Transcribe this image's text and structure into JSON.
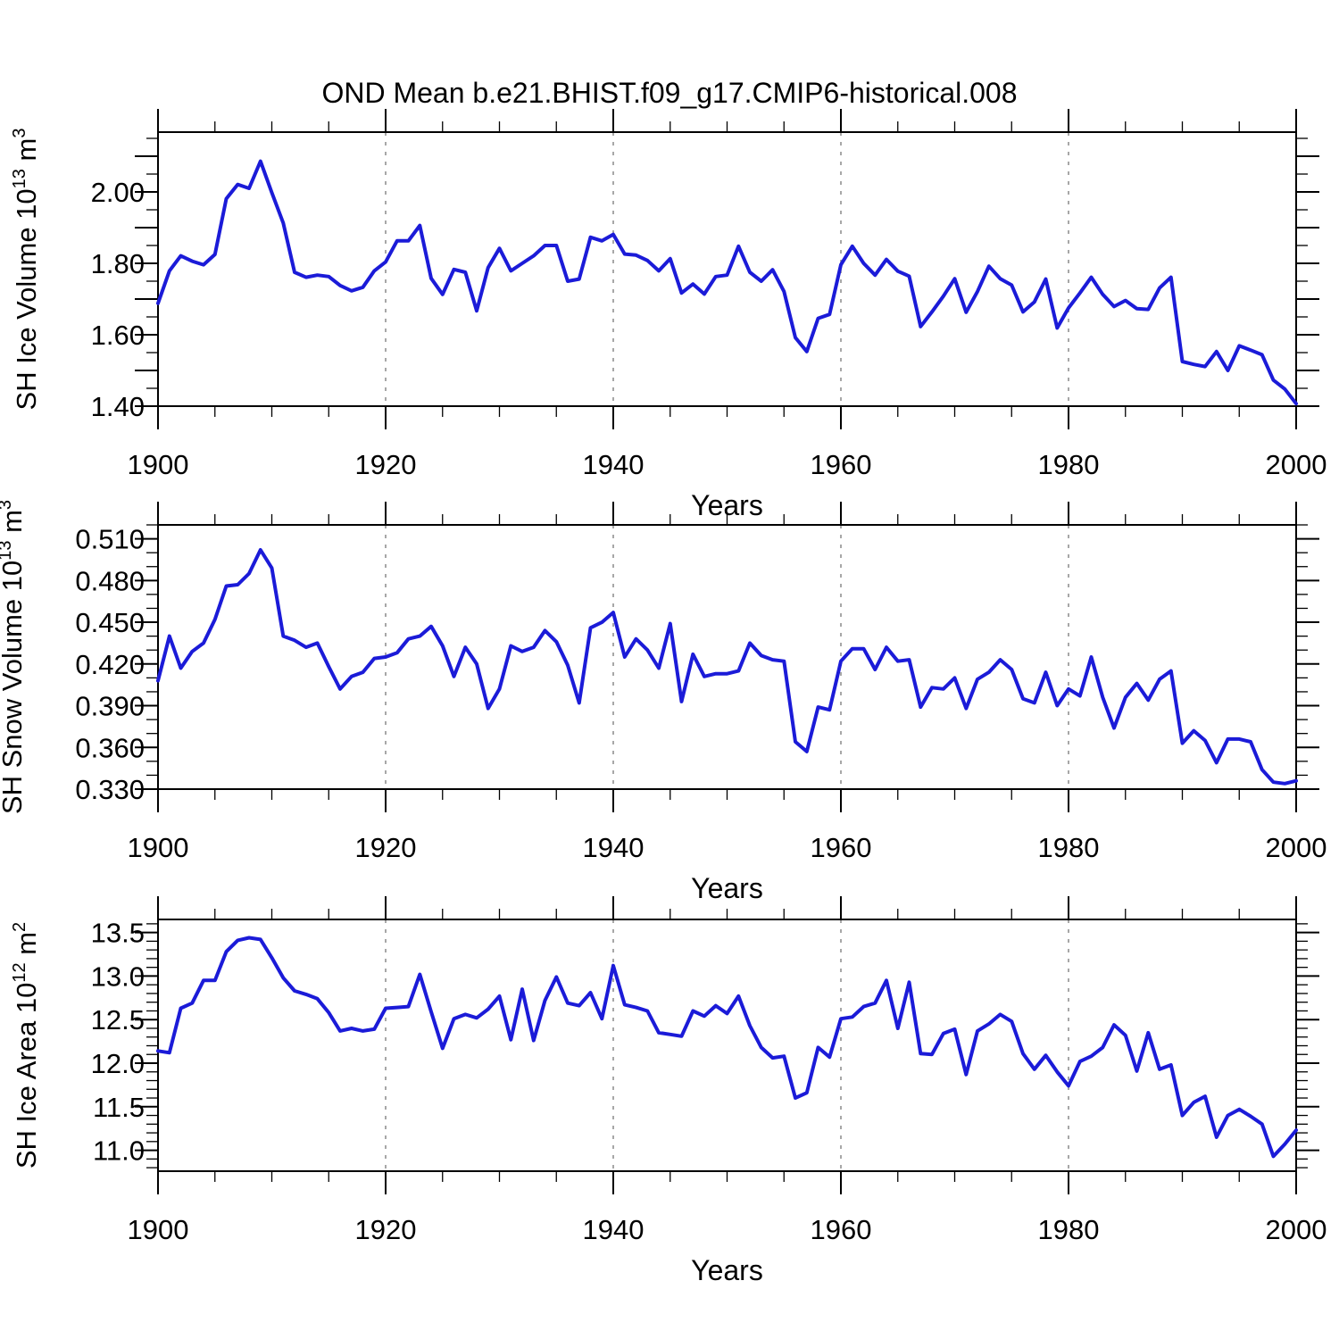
{
  "title": "OND Mean b.e21.BHIST.f09_g17.CMIP6-historical.008",
  "colors": {
    "line": "#1b1bd8",
    "grid": "#8a8a8a",
    "axis": "#000000",
    "background": "#ffffff"
  },
  "x_axis": {
    "label": "Years",
    "start": 1900,
    "end": 2000,
    "major_step": 20,
    "minor_step": 5,
    "tick_labels": [
      "1900",
      "1920",
      "1940",
      "1960",
      "1980",
      "2000"
    ],
    "gridlines": [
      1920,
      1940,
      1960,
      1980
    ]
  },
  "years": [
    1900,
    1901,
    1902,
    1903,
    1904,
    1905,
    1906,
    1907,
    1908,
    1909,
    1910,
    1911,
    1912,
    1913,
    1914,
    1915,
    1916,
    1917,
    1918,
    1919,
    1920,
    1921,
    1922,
    1923,
    1924,
    1925,
    1926,
    1927,
    1928,
    1929,
    1930,
    1931,
    1932,
    1933,
    1934,
    1935,
    1936,
    1937,
    1938,
    1939,
    1940,
    1941,
    1942,
    1943,
    1944,
    1945,
    1946,
    1947,
    1948,
    1949,
    1950,
    1951,
    1952,
    1953,
    1954,
    1955,
    1956,
    1957,
    1958,
    1959,
    1960,
    1961,
    1962,
    1963,
    1964,
    1965,
    1966,
    1967,
    1968,
    1969,
    1970,
    1971,
    1972,
    1973,
    1974,
    1975,
    1976,
    1977,
    1978,
    1979,
    1980,
    1981,
    1982,
    1983,
    1984,
    1985,
    1986,
    1987,
    1988,
    1989,
    1990,
    1991,
    1992,
    1993,
    1994,
    1995,
    1996,
    1997,
    1998,
    1999,
    2000
  ],
  "chart_data": [
    {
      "type": "line",
      "panel": "top",
      "ylabel_text": "SH Ice Volume 10^13 m^3",
      "ylabel_parts": [
        {
          "t": "SH Ice Volume 10"
        },
        {
          "sup": "13"
        },
        {
          "t": " m"
        },
        {
          "sup": "3"
        }
      ],
      "ylim": [
        1.4,
        2.1675
      ],
      "ytick_base": 1.4,
      "ytick_label_step": 0.2,
      "ytick_long_step": 0.1,
      "ytick_short_step": 0.05,
      "ytick_decimals": 2,
      "grid": "vertical-dashed",
      "legend": "none",
      "series": [
        {
          "name": "SH Ice Volume",
          "values": [
            1.688,
            1.779,
            1.821,
            1.806,
            1.796,
            1.825,
            1.981,
            2.021,
            2.01,
            2.086,
            1.998,
            1.913,
            1.775,
            1.761,
            1.767,
            1.763,
            1.738,
            1.723,
            1.733,
            1.779,
            1.804,
            1.863,
            1.863,
            1.906,
            1.758,
            1.713,
            1.783,
            1.775,
            1.667,
            1.788,
            1.842,
            1.779,
            1.8,
            1.821,
            1.85,
            1.85,
            1.75,
            1.756,
            1.873,
            1.863,
            1.881,
            1.826,
            1.823,
            1.808,
            1.779,
            1.813,
            1.717,
            1.742,
            1.714,
            1.763,
            1.767,
            1.848,
            1.775,
            1.75,
            1.782,
            1.721,
            1.592,
            1.553,
            1.646,
            1.657,
            1.796,
            1.848,
            1.8,
            1.767,
            1.811,
            1.778,
            1.764,
            1.623,
            1.664,
            1.708,
            1.757,
            1.663,
            1.721,
            1.792,
            1.757,
            1.739,
            1.664,
            1.692,
            1.756,
            1.619,
            1.675,
            1.717,
            1.761,
            1.713,
            1.679,
            1.696,
            1.673,
            1.671,
            1.731,
            1.761,
            1.525,
            1.517,
            1.511,
            1.553,
            1.5,
            1.569,
            1.557,
            1.544,
            1.473,
            1.448,
            1.407
          ]
        }
      ]
    },
    {
      "type": "line",
      "panel": "middle",
      "ylabel_text": "SH Snow Volume 10^13 m^3",
      "ylabel_parts": [
        {
          "t": "SH Snow Volume 10"
        },
        {
          "sup": "13"
        },
        {
          "t": " m"
        },
        {
          "sup": "3"
        }
      ],
      "ylim": [
        0.33,
        0.52
      ],
      "ytick_base": 0.33,
      "ytick_label_step": 0.03,
      "ytick_long_step": 0.03,
      "ytick_short_step": 0.01,
      "ytick_decimals": 3,
      "grid": "vertical-dashed",
      "legend": "none",
      "series": [
        {
          "name": "SH Snow Volume",
          "values": [
            0.408,
            0.44,
            0.417,
            0.429,
            0.435,
            0.452,
            0.476,
            0.477,
            0.485,
            0.502,
            0.489,
            0.44,
            0.437,
            0.432,
            0.435,
            0.418,
            0.402,
            0.411,
            0.414,
            0.424,
            0.425,
            0.428,
            0.438,
            0.44,
            0.447,
            0.433,
            0.411,
            0.432,
            0.42,
            0.388,
            0.402,
            0.433,
            0.429,
            0.432,
            0.444,
            0.436,
            0.419,
            0.392,
            0.446,
            0.45,
            0.457,
            0.425,
            0.438,
            0.43,
            0.417,
            0.449,
            0.393,
            0.427,
            0.411,
            0.413,
            0.413,
            0.415,
            0.435,
            0.426,
            0.423,
            0.422,
            0.364,
            0.357,
            0.389,
            0.387,
            0.422,
            0.431,
            0.431,
            0.416,
            0.432,
            0.422,
            0.423,
            0.389,
            0.403,
            0.402,
            0.41,
            0.388,
            0.409,
            0.414,
            0.423,
            0.416,
            0.395,
            0.392,
            0.414,
            0.39,
            0.402,
            0.397,
            0.425,
            0.396,
            0.374,
            0.396,
            0.406,
            0.394,
            0.409,
            0.415,
            0.363,
            0.372,
            0.365,
            0.349,
            0.366,
            0.366,
            0.364,
            0.344,
            0.335,
            0.334,
            0.336
          ]
        }
      ]
    },
    {
      "type": "line",
      "panel": "bottom",
      "ylabel_text": "SH Ice Area 10^12 m^2",
      "ylabel_parts": [
        {
          "t": "SH Ice Area 10"
        },
        {
          "sup": "12"
        },
        {
          "t": " m"
        },
        {
          "sup": "2"
        }
      ],
      "ylim": [
        10.76,
        13.65
      ],
      "ytick_base": 11.0,
      "ytick_label_step": 0.5,
      "ytick_long_step": 0.5,
      "ytick_short_step": 0.1,
      "ytick_decimals": 1,
      "grid": "vertical-dashed",
      "legend": "none",
      "series": [
        {
          "name": "SH Ice Area",
          "values": [
            12.14,
            12.12,
            12.63,
            12.69,
            12.95,
            12.95,
            13.28,
            13.41,
            13.44,
            13.42,
            13.21,
            12.98,
            12.83,
            12.79,
            12.74,
            12.58,
            12.37,
            12.4,
            12.37,
            12.39,
            12.63,
            12.64,
            12.65,
            13.02,
            12.59,
            12.17,
            12.51,
            12.56,
            12.52,
            12.62,
            12.77,
            12.27,
            12.85,
            12.26,
            12.72,
            12.99,
            12.69,
            12.66,
            12.81,
            12.51,
            13.12,
            12.67,
            12.64,
            12.6,
            12.35,
            12.33,
            12.31,
            12.6,
            12.54,
            12.66,
            12.57,
            12.77,
            12.43,
            12.18,
            12.06,
            12.08,
            11.6,
            11.66,
            12.18,
            12.07,
            12.51,
            12.53,
            12.65,
            12.69,
            12.95,
            12.4,
            12.93,
            12.11,
            12.1,
            12.34,
            12.39,
            11.87,
            12.37,
            12.45,
            12.56,
            12.48,
            12.11,
            11.93,
            12.09,
            11.9,
            11.74,
            12.02,
            12.08,
            12.18,
            12.44,
            12.32,
            11.91,
            12.35,
            11.93,
            11.98,
            11.4,
            11.55,
            11.62,
            11.15,
            11.4,
            11.47,
            11.39,
            11.3,
            10.93,
            11.07,
            11.23
          ]
        }
      ]
    }
  ]
}
